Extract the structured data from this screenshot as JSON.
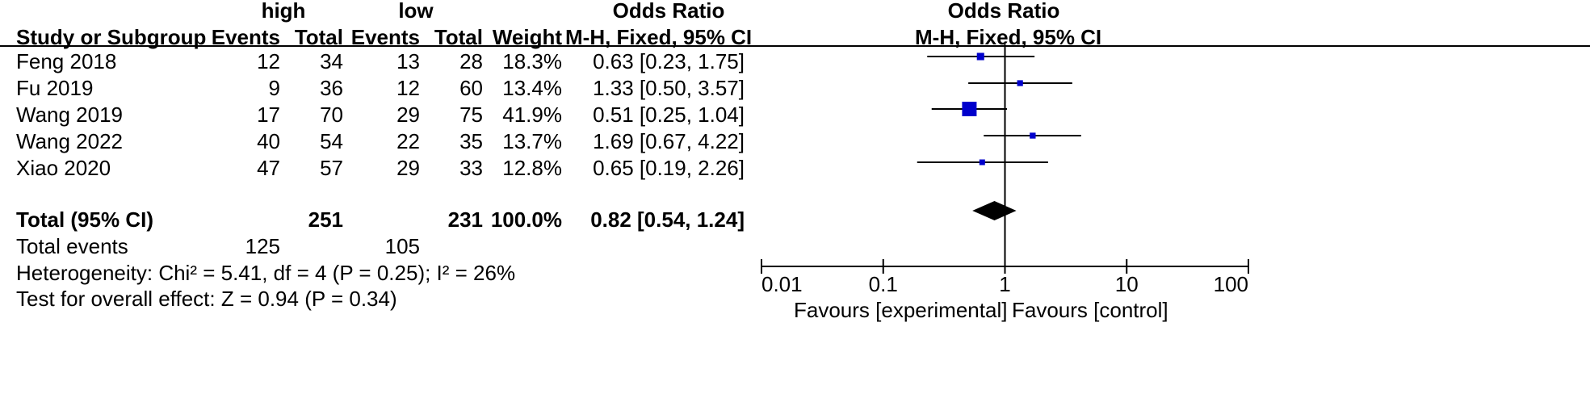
{
  "header": {
    "group1": "high",
    "group2": "low",
    "or_table": "Odds Ratio",
    "or_plot": "Odds Ratio",
    "study": "Study or Subgroup",
    "events1": "Events",
    "total1": "Total",
    "events2": "Events",
    "total2": "Total",
    "weight": "Weight",
    "method_table": "M-H, Fixed, 95% CI",
    "method_plot": "M-H, Fixed, 95% CI"
  },
  "rows": [
    {
      "study": "Feng 2018",
      "e1": "12",
      "t1": "34",
      "e2": "13",
      "t2": "28",
      "weight": "18.3%",
      "ci": "0.63 [0.23, 1.75]"
    },
    {
      "study": "Fu 2019",
      "e1": "9",
      "t1": "36",
      "e2": "12",
      "t2": "60",
      "weight": "13.4%",
      "ci": "1.33 [0.50, 3.57]"
    },
    {
      "study": "Wang 2019",
      "e1": "17",
      "t1": "70",
      "e2": "29",
      "t2": "75",
      "weight": "41.9%",
      "ci": "0.51 [0.25, 1.04]"
    },
    {
      "study": "Wang 2022",
      "e1": "40",
      "t1": "54",
      "e2": "22",
      "t2": "35",
      "weight": "13.7%",
      "ci": "1.69 [0.67, 4.22]"
    },
    {
      "study": "Xiao 2020",
      "e1": "47",
      "t1": "57",
      "e2": "29",
      "t2": "33",
      "weight": "12.8%",
      "ci": "0.65 [0.19, 2.26]"
    }
  ],
  "total": {
    "label": "Total (95% CI)",
    "t1": "251",
    "t2": "231",
    "weight": "100.0%",
    "ci": "0.82 [0.54, 1.24]"
  },
  "events": {
    "label": "Total events",
    "e1": "125",
    "e2": "105"
  },
  "heterogeneity": "Heterogeneity: Chi² = 5.41, df = 4 (P = 0.25); I² = 26%",
  "overall": "Test for overall effect: Z = 0.94 (P = 0.34)",
  "axis": {
    "ticks": [
      "0.01",
      "0.1",
      "1",
      "10",
      "100"
    ],
    "favours_left": "Favours [experimental]",
    "favours_right": "Favours [control]"
  },
  "colors": {
    "marker": "#0000cc",
    "diamond": "#000000",
    "line": "#000000"
  },
  "chart_data": {
    "type": "forest",
    "scale": "log",
    "xlim": [
      0.01,
      100
    ],
    "reference_line": 1,
    "studies": [
      {
        "name": "Feng 2018",
        "or": 0.63,
        "lower": 0.23,
        "upper": 1.75,
        "weight": 18.3
      },
      {
        "name": "Fu 2019",
        "or": 1.33,
        "lower": 0.5,
        "upper": 3.57,
        "weight": 13.4
      },
      {
        "name": "Wang 2019",
        "or": 0.51,
        "lower": 0.25,
        "upper": 1.04,
        "weight": 41.9
      },
      {
        "name": "Wang 2022",
        "or": 1.69,
        "lower": 0.67,
        "upper": 4.22,
        "weight": 13.7
      },
      {
        "name": "Xiao 2020",
        "or": 0.65,
        "lower": 0.19,
        "upper": 2.26,
        "weight": 12.8
      }
    ],
    "pooled": {
      "or": 0.82,
      "lower": 0.54,
      "upper": 1.24
    }
  }
}
